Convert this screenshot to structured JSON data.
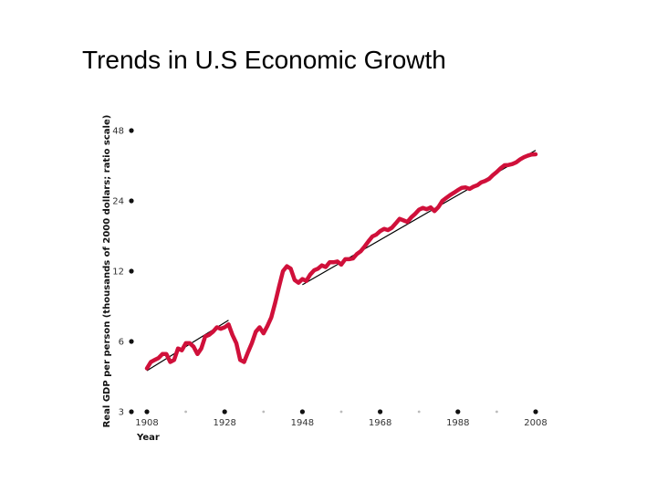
{
  "slide": {
    "title": "Trends in U.S Economic Growth"
  },
  "chart_data": {
    "type": "line",
    "title": "",
    "xlabel": "Year",
    "ylabel": "Real GDP per person (thousands of 2000 dollars; ratio scale)",
    "y_scale": "log",
    "xlim": [
      1908,
      2008
    ],
    "ylim": [
      3,
      48
    ],
    "x_ticks": [
      1908,
      1928,
      1948,
      1968,
      1988,
      2008
    ],
    "x_tick_labels": [
      "1908",
      "1928",
      "1948",
      "1968",
      "1988",
      "2008"
    ],
    "x_minor_ticks": [
      1918,
      1938,
      1958,
      1978,
      1998
    ],
    "y_ticks": [
      3,
      6,
      12,
      24,
      48
    ],
    "y_tick_labels": [
      "3",
      "6",
      "12",
      "24",
      "48"
    ],
    "series": [
      {
        "name": "Real GDP per person",
        "color": "#d0103a",
        "x": [
          1908,
          1909,
          1910,
          1911,
          1912,
          1913,
          1914,
          1915,
          1916,
          1917,
          1918,
          1919,
          1920,
          1921,
          1922,
          1923,
          1924,
          1925,
          1926,
          1927,
          1928,
          1929,
          1930,
          1931,
          1932,
          1933,
          1934,
          1935,
          1936,
          1937,
          1938,
          1939,
          1940,
          1941,
          1942,
          1943,
          1944,
          1945,
          1946,
          1947,
          1948,
          1949,
          1950,
          1951,
          1952,
          1953,
          1954,
          1955,
          1956,
          1957,
          1958,
          1959,
          1960,
          1961,
          1962,
          1963,
          1964,
          1965,
          1966,
          1967,
          1968,
          1969,
          1970,
          1971,
          1972,
          1973,
          1974,
          1975,
          1976,
          1977,
          1978,
          1979,
          1980,
          1981,
          1982,
          1983,
          1984,
          1985,
          1986,
          1987,
          1988,
          1989,
          1990,
          1991,
          1992,
          1993,
          1994,
          1995,
          1996,
          1997,
          1998,
          1999,
          2000,
          2001,
          2002,
          2003,
          2004,
          2005,
          2006,
          2007,
          2008
        ],
        "values": [
          4.6,
          4.9,
          5.0,
          5.1,
          5.3,
          5.3,
          4.9,
          5.0,
          5.6,
          5.5,
          5.9,
          5.9,
          5.7,
          5.3,
          5.6,
          6.3,
          6.4,
          6.6,
          6.9,
          6.8,
          6.9,
          7.1,
          6.4,
          5.9,
          5.0,
          4.9,
          5.4,
          5.9,
          6.6,
          6.9,
          6.5,
          7.0,
          7.6,
          8.8,
          10.3,
          12.0,
          12.6,
          12.3,
          11.0,
          10.7,
          11.1,
          10.9,
          11.6,
          12.1,
          12.3,
          12.7,
          12.5,
          13.1,
          13.1,
          13.2,
          12.8,
          13.5,
          13.5,
          13.6,
          14.2,
          14.6,
          15.3,
          16.1,
          16.9,
          17.2,
          17.8,
          18.2,
          18.0,
          18.4,
          19.2,
          20.1,
          19.8,
          19.5,
          20.4,
          21.1,
          22.0,
          22.4,
          22.1,
          22.5,
          21.7,
          22.6,
          24.0,
          24.7,
          25.4,
          26.0,
          26.7,
          27.3,
          27.4,
          27.0,
          27.6,
          28.0,
          28.8,
          29.2,
          29.8,
          30.9,
          31.9,
          33.1,
          34.1,
          34.2,
          34.5,
          35.1,
          36.1,
          36.9,
          37.5,
          37.9,
          38.0
        ]
      },
      {
        "name": "Trend",
        "color": "#000000",
        "segments": [
          {
            "x": [
              1908,
              1929
            ],
            "values": [
              4.5,
              7.4
            ]
          },
          {
            "x": [
              1948,
              2008
            ],
            "values": [
              10.5,
              39.5
            ]
          }
        ]
      }
    ],
    "grid": false,
    "legend": "none"
  }
}
